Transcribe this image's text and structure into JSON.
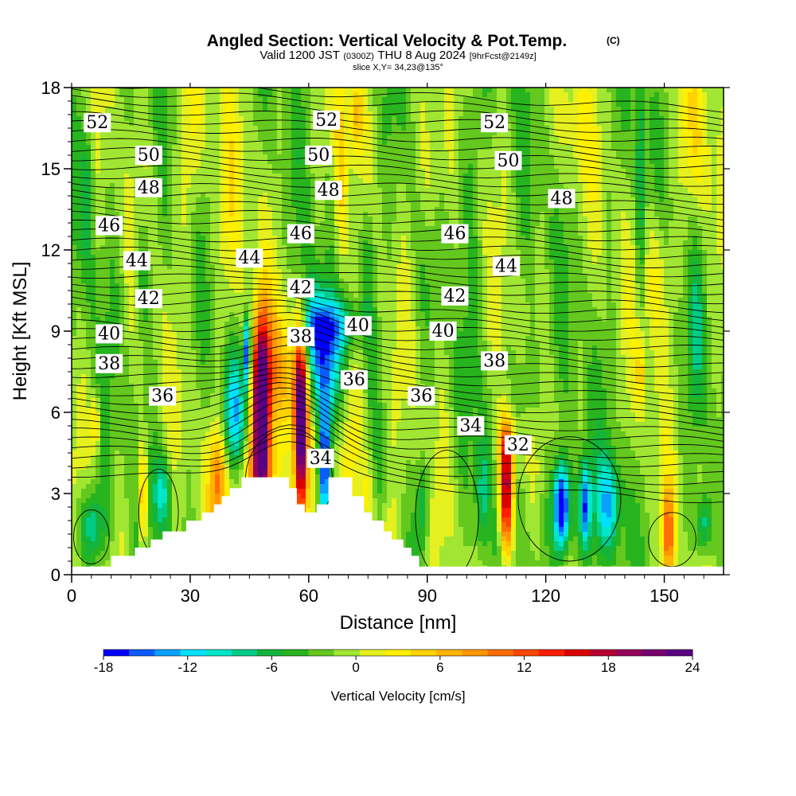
{
  "chart_data": {
    "type": "heatmap",
    "title": "Angled Section: Vertical Velocity & Pot.Temp.",
    "title_mark": "(C)",
    "subtitle_main": "Valid 1200 JST",
    "subtitle_utc": "(0300Z)",
    "subtitle_date": "THU 8 Aug 2024",
    "subtitle_fcst": "[9hrFcst@2149z]",
    "slice_text": "slice X,Y= 34,23@135°",
    "xlabel": "Distance [nm]",
    "ylabel": "Height [Kft MSL]",
    "xlim": [
      0,
      165
    ],
    "ylim": [
      0,
      18
    ],
    "x_ticks": [
      0,
      30,
      60,
      90,
      120,
      150
    ],
    "y_ticks": [
      0,
      3,
      6,
      9,
      12,
      15,
      18
    ],
    "colorbar": {
      "label": "Vertical Velocity [cm/s]",
      "ticks": [
        "-18",
        "-12",
        "-6",
        "0",
        "6",
        "12",
        "18",
        "24"
      ],
      "range": [
        -18,
        24
      ],
      "colors": [
        "#0000ff",
        "#0b5cff",
        "#0aa0ff",
        "#00e0ff",
        "#00e6c8",
        "#00cc88",
        "#14b43c",
        "#28b41e",
        "#64c81e",
        "#a0e632",
        "#e6f01e",
        "#fff000",
        "#ffd200",
        "#ffb400",
        "#ff9600",
        "#ff6e00",
        "#ff4600",
        "#ff1e00",
        "#dc0000",
        "#b40032",
        "#96005a",
        "#78006e",
        "#5a0082"
      ]
    },
    "theta_label_values": [
      "32",
      "34",
      "36",
      "38",
      "40",
      "42",
      "44",
      "46",
      "48",
      "50",
      "52"
    ],
    "contour_labels": [
      {
        "text": "52",
        "x": 6.5,
        "y": 16.7
      },
      {
        "text": "52",
        "x": 64.5,
        "y": 16.8
      },
      {
        "text": "52",
        "x": 107,
        "y": 16.7
      },
      {
        "text": "50",
        "x": 19.5,
        "y": 15.5
      },
      {
        "text": "50",
        "x": 62.5,
        "y": 15.5
      },
      {
        "text": "50",
        "x": 110.5,
        "y": 15.3
      },
      {
        "text": "48",
        "x": 19.5,
        "y": 14.3
      },
      {
        "text": "48",
        "x": 65,
        "y": 14.2
      },
      {
        "text": "48",
        "x": 124,
        "y": 13.9
      },
      {
        "text": "46",
        "x": 9.5,
        "y": 12.9
      },
      {
        "text": "46",
        "x": 58,
        "y": 12.6
      },
      {
        "text": "46",
        "x": 97,
        "y": 12.6
      },
      {
        "text": "44",
        "x": 16.5,
        "y": 11.6
      },
      {
        "text": "44",
        "x": 45,
        "y": 11.7
      },
      {
        "text": "44",
        "x": 110,
        "y": 11.4
      },
      {
        "text": "42",
        "x": 19.5,
        "y": 10.2
      },
      {
        "text": "42",
        "x": 58,
        "y": 10.6
      },
      {
        "text": "42",
        "x": 97,
        "y": 10.3
      },
      {
        "text": "40",
        "x": 9.5,
        "y": 8.9
      },
      {
        "text": "40",
        "x": 72.5,
        "y": 9.2
      },
      {
        "text": "40",
        "x": 94,
        "y": 9
      },
      {
        "text": "38",
        "x": 9.5,
        "y": 7.8
      },
      {
        "text": "38",
        "x": 58,
        "y": 8.8
      },
      {
        "text": "38",
        "x": 107,
        "y": 7.9
      },
      {
        "text": "36",
        "x": 23,
        "y": 6.6
      },
      {
        "text": "36",
        "x": 71.5,
        "y": 7.2
      },
      {
        "text": "36",
        "x": 88.5,
        "y": 6.6
      },
      {
        "text": "34",
        "x": 63,
        "y": 4.3
      },
      {
        "text": "34",
        "x": 101,
        "y": 5.5
      },
      {
        "text": "32",
        "x": 113,
        "y": 4.8
      }
    ],
    "terrain_kft": [
      [
        0,
        0.3
      ],
      [
        10,
        0.3
      ],
      [
        10,
        0.7
      ],
      [
        16,
        0.7
      ],
      [
        16,
        1
      ],
      [
        20,
        1
      ],
      [
        20,
        1.3
      ],
      [
        23,
        1.3
      ],
      [
        23,
        1.6
      ],
      [
        29,
        1.6
      ],
      [
        29,
        2
      ],
      [
        33,
        2
      ],
      [
        33,
        2.3
      ],
      [
        36,
        2.3
      ],
      [
        36,
        2.6
      ],
      [
        38,
        2.6
      ],
      [
        38,
        2.9
      ],
      [
        40,
        2.9
      ],
      [
        40,
        3.2
      ],
      [
        43,
        3.2
      ],
      [
        43,
        3.6
      ],
      [
        55,
        3.6
      ],
      [
        55,
        3.2
      ],
      [
        57,
        3.2
      ],
      [
        57,
        2.6
      ],
      [
        59,
        2.6
      ],
      [
        59,
        2.3
      ],
      [
        62,
        2.3
      ],
      [
        62,
        2.6
      ],
      [
        65,
        2.6
      ],
      [
        65,
        3.6
      ],
      [
        71,
        3.6
      ],
      [
        71,
        2.9
      ],
      [
        74,
        2.9
      ],
      [
        74,
        2.3
      ],
      [
        76,
        2.3
      ],
      [
        76,
        2
      ],
      [
        79,
        2
      ],
      [
        79,
        1.6
      ],
      [
        81,
        1.6
      ],
      [
        81,
        1.3
      ],
      [
        84,
        1.3
      ],
      [
        84,
        1
      ],
      [
        86,
        1
      ],
      [
        86,
        0.7
      ],
      [
        88,
        0.7
      ],
      [
        88,
        0.3
      ],
      [
        165,
        0.3
      ]
    ],
    "w_field_cm_s": [
      {
        "x": 48,
        "y": 6,
        "sx": 1.4,
        "sy": 2.2,
        "amp": 30
      },
      {
        "x": 58,
        "y": 5.5,
        "sx": 1.1,
        "sy": 2.4,
        "amp": 26
      },
      {
        "x": 53,
        "y": 7.5,
        "sx": 6,
        "sy": 1.8,
        "amp": 8
      },
      {
        "x": 47,
        "y": 3.6,
        "sx": 4,
        "sy": 1,
        "amp": 10
      },
      {
        "x": 37,
        "y": 3.4,
        "sx": 1.6,
        "sy": 1.4,
        "amp": 10
      },
      {
        "x": 44.5,
        "y": 8.2,
        "sx": 0.6,
        "sy": 0.9,
        "amp": -18
      },
      {
        "x": 41,
        "y": 6,
        "sx": 2,
        "sy": 1.6,
        "amp": -10
      },
      {
        "x": 64,
        "y": 4,
        "sx": 1,
        "sy": 1.5,
        "amp": -16
      },
      {
        "x": 64,
        "y": 7.5,
        "sx": 3,
        "sy": 1.5,
        "amp": -10
      },
      {
        "x": 61,
        "y": 9,
        "sx": 3,
        "sy": 1.5,
        "amp": -9
      },
      {
        "x": 67,
        "y": 9.2,
        "sx": 5,
        "sy": 0.7,
        "amp": -7
      },
      {
        "x": 71,
        "y": 5,
        "sx": 2.2,
        "sy": 2.5,
        "amp": 5
      },
      {
        "x": 75,
        "y": 2.8,
        "sx": 1.4,
        "sy": 1.3,
        "amp": 5
      },
      {
        "x": 110,
        "y": 3,
        "sx": 1.2,
        "sy": 1.6,
        "amp": 22
      },
      {
        "x": 110,
        "y": 4.8,
        "sx": 1.8,
        "sy": 0.8,
        "amp": 6
      },
      {
        "x": 104,
        "y": 3,
        "sx": 1.2,
        "sy": 1.6,
        "amp": -7
      },
      {
        "x": 124,
        "y": 2.5,
        "sx": 1.3,
        "sy": 1.1,
        "amp": -18
      },
      {
        "x": 130,
        "y": 2.6,
        "sx": 0.9,
        "sy": 1.1,
        "amp": -12
      },
      {
        "x": 136,
        "y": 2.6,
        "sx": 2,
        "sy": 1.2,
        "amp": -9
      },
      {
        "x": 127,
        "y": 2.2,
        "sx": 5,
        "sy": 1.5,
        "amp": -4
      },
      {
        "x": 151,
        "y": 1.5,
        "sx": 1,
        "sy": 1.2,
        "amp": 12
      },
      {
        "x": 160,
        "y": 1.8,
        "sx": 1.4,
        "sy": 0.8,
        "amp": -8
      },
      {
        "x": 18,
        "y": 2.8,
        "sx": 0.8,
        "sy": 1.5,
        "amp": 10
      },
      {
        "x": 23,
        "y": 3,
        "sx": 1.6,
        "sy": 1,
        "amp": -8
      },
      {
        "x": 5,
        "y": 1.8,
        "sx": 2.5,
        "sy": 1,
        "amp": -8
      },
      {
        "x": 6,
        "y": 5.6,
        "sx": 0.7,
        "sy": 0.7,
        "amp": 7
      },
      {
        "x": 89,
        "y": 2.6,
        "sx": 1,
        "sy": 1.2,
        "amp": -6
      },
      {
        "x": 80,
        "y": 1.4,
        "sx": 1.5,
        "sy": 1,
        "amp": 5
      },
      {
        "x": 68,
        "y": 14.5,
        "sx": 1.2,
        "sy": 3,
        "amp": 6
      },
      {
        "x": 72,
        "y": 17,
        "sx": 1.2,
        "sy": 1,
        "amp": 7
      },
      {
        "x": 75,
        "y": 11.5,
        "sx": 1.5,
        "sy": 2,
        "amp": -5
      },
      {
        "x": 30,
        "y": 16,
        "sx": 2.5,
        "sy": 2.5,
        "amp": 4
      },
      {
        "x": 91,
        "y": 15,
        "sx": 2.5,
        "sy": 2,
        "amp": 4
      },
      {
        "x": 144,
        "y": 14.5,
        "sx": 0.8,
        "sy": 3.5,
        "amp": -6
      },
      {
        "x": 148,
        "y": 11,
        "sx": 2.5,
        "sy": 2,
        "amp": 5
      },
      {
        "x": 158,
        "y": 16,
        "sx": 2.5,
        "sy": 2,
        "amp": 4
      },
      {
        "x": 18,
        "y": 11,
        "sx": 1.2,
        "sy": 1.5,
        "amp": -5
      },
      {
        "x": 144,
        "y": 7.5,
        "sx": 0.8,
        "sy": 1,
        "amp": 6
      },
      {
        "x": 4,
        "y": 14,
        "sx": 1.2,
        "sy": 2,
        "amp": -5
      },
      {
        "x": 158,
        "y": 9,
        "sx": 1.2,
        "sy": 2,
        "amp": -4
      },
      {
        "x": 100,
        "y": 15.5,
        "sx": 2.5,
        "sy": 3,
        "amp": -3
      },
      {
        "x": 40,
        "y": 13,
        "sx": 3,
        "sy": 3,
        "amp": 3
      },
      {
        "x": 116,
        "y": 7,
        "sx": 2,
        "sy": 1.5,
        "amp": -4
      },
      {
        "x": 128,
        "y": 16.5,
        "sx": 3,
        "sy": 1.5,
        "amp": 3
      }
    ],
    "w_background_cm_s": -1.5
  }
}
